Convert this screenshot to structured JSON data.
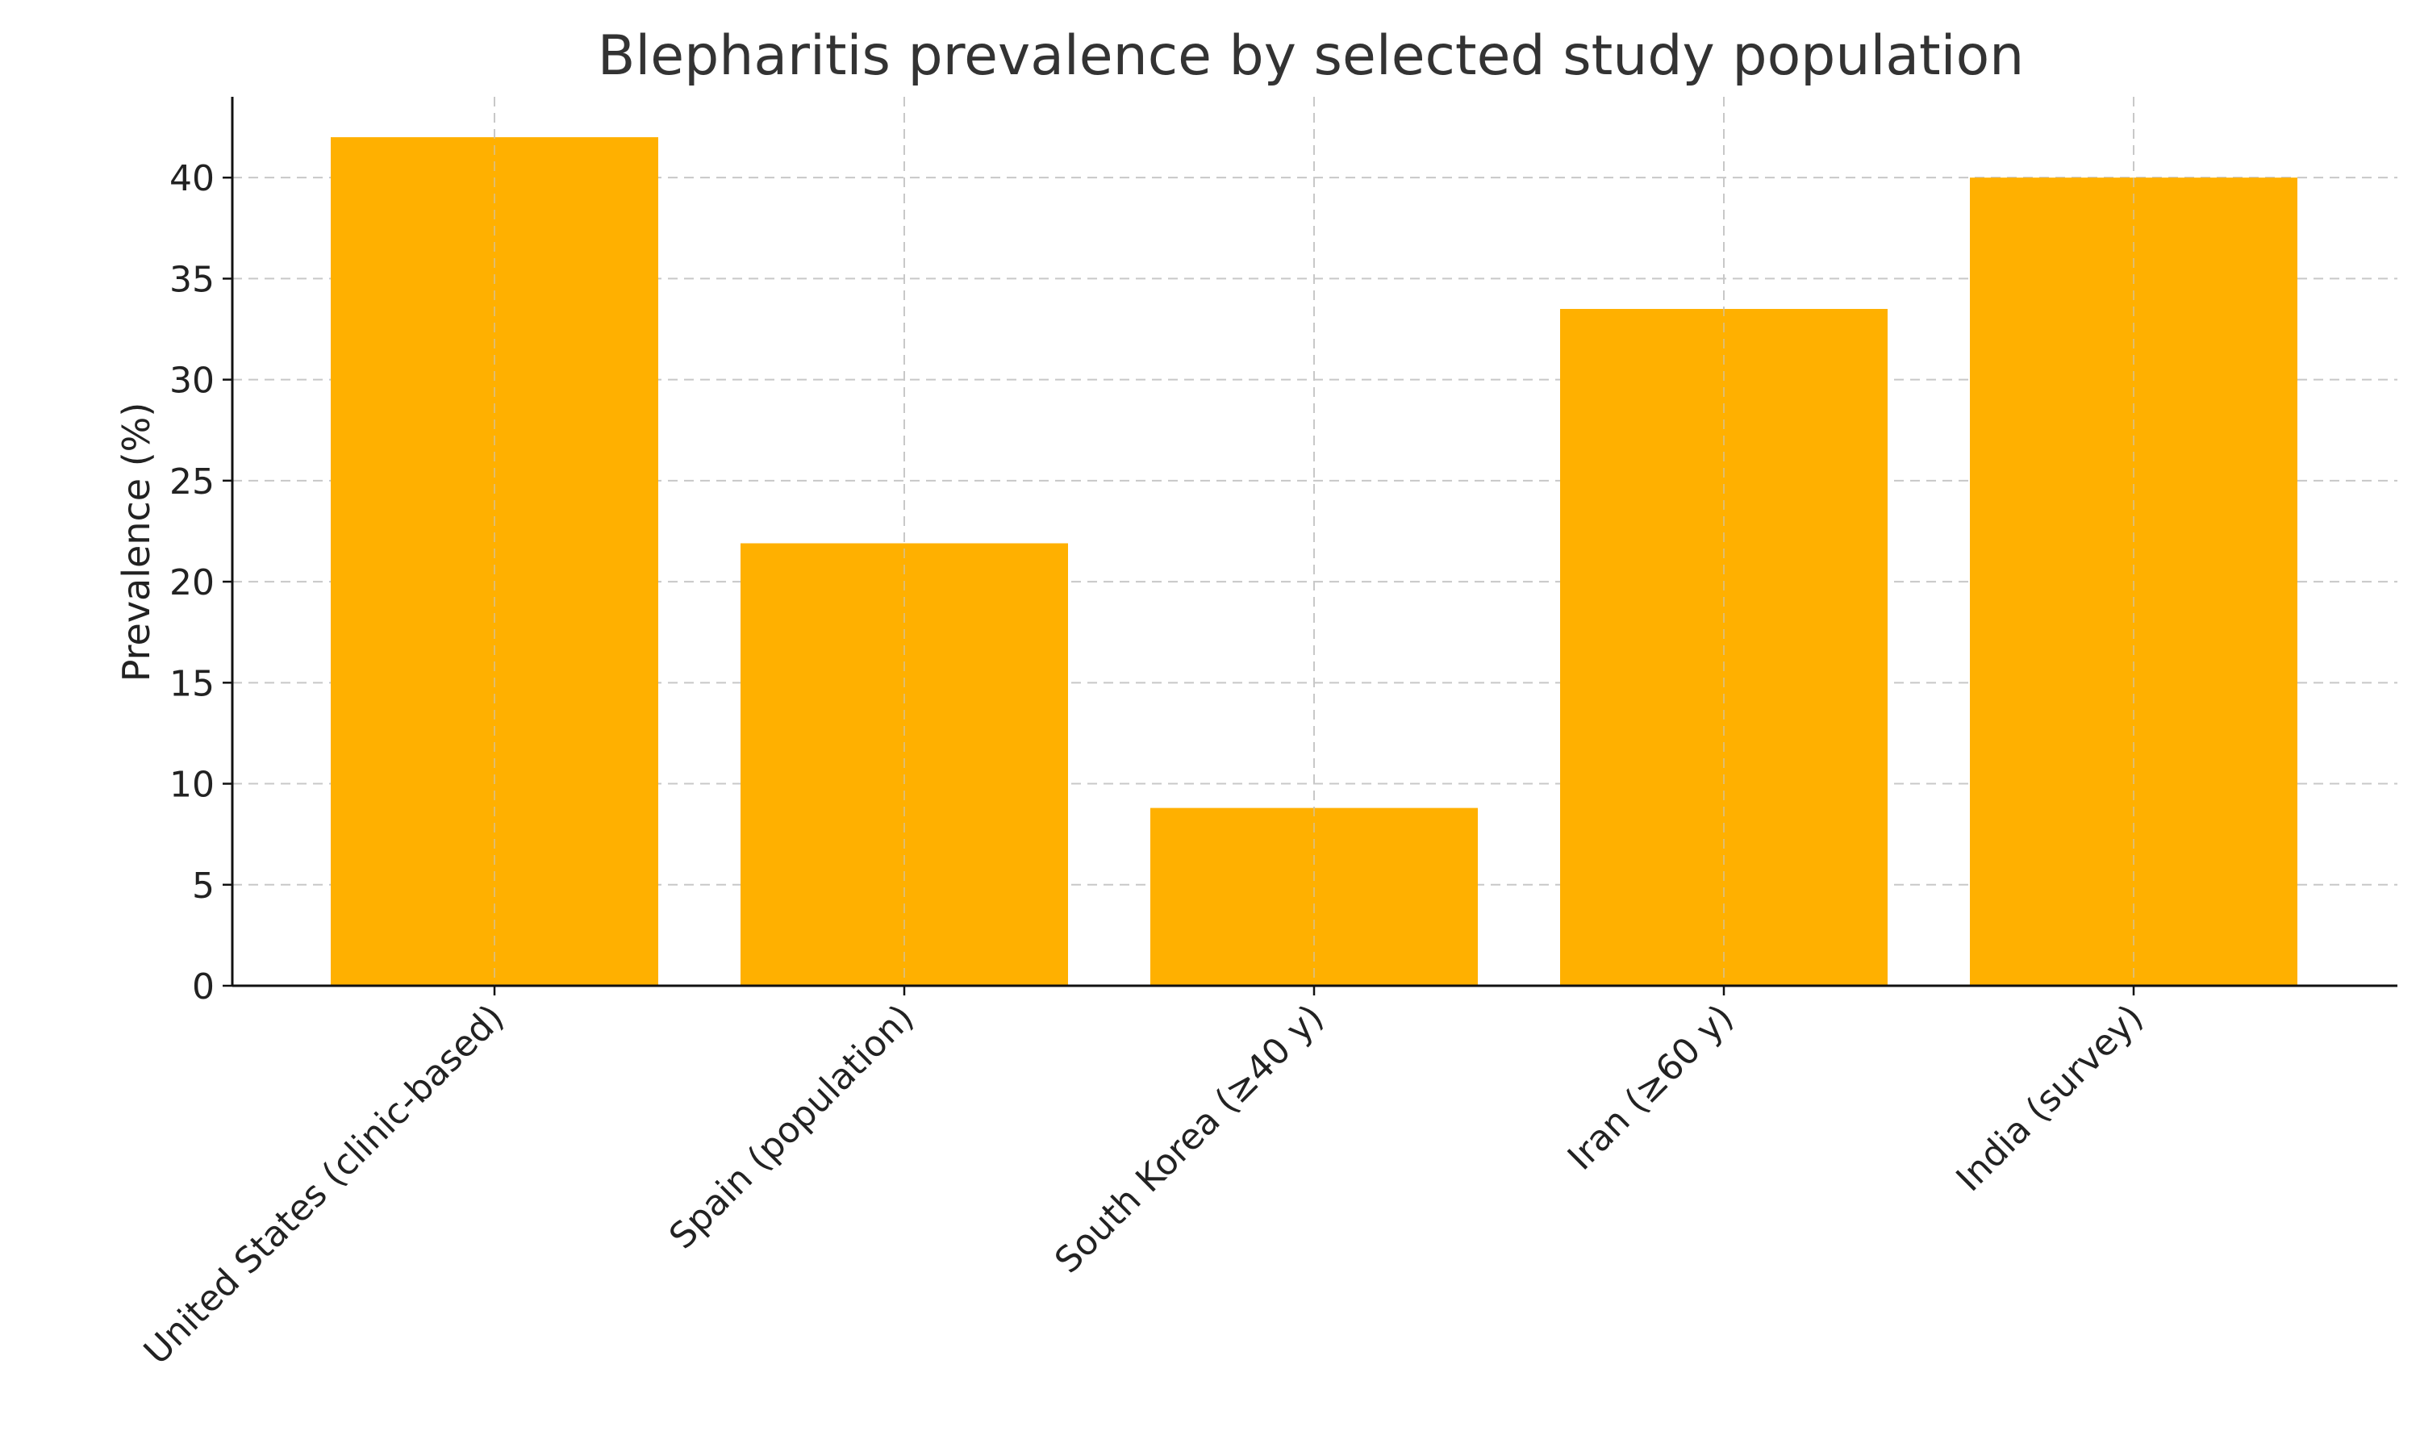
{
  "chart_data": {
    "type": "bar",
    "title": "Blepharitis prevalence by selected study population",
    "xlabel": "",
    "ylabel": "Prevalence (%)",
    "categories": [
      "United States (clinic-based)",
      "Spain (population)",
      "South Korea (≥40 y)",
      "Iran (≥60 y)",
      "India (survey)"
    ],
    "values": [
      42,
      21.9,
      8.8,
      33.5,
      40
    ],
    "ylim": [
      0,
      44
    ],
    "yticks": [
      0,
      5,
      10,
      15,
      20,
      25,
      30,
      35,
      40
    ],
    "grid": true,
    "bar_color": "#FFB000",
    "legend": false
  }
}
